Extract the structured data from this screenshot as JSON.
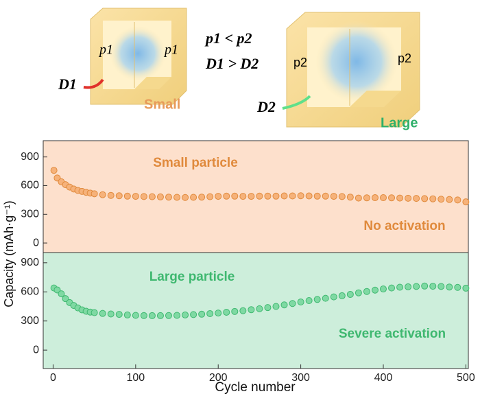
{
  "diagram": {
    "relation_p": "p1 < p2",
    "relation_d": "D1 > D2",
    "small": {
      "p_left": "p1",
      "p_right": "p1",
      "d": "D1",
      "label": "Small"
    },
    "large": {
      "p_left": "p2",
      "p_right": "p2",
      "d": "D2",
      "label": "Large"
    }
  },
  "chart_data": [
    {
      "type": "scatter",
      "ylabel": "Capacity (mAh·g⁻¹)",
      "annotations": [
        "Small particle",
        "No activation"
      ],
      "background": "#fde0cc",
      "color": "#f6b27a",
      "edge_color": "#e08a3c",
      "x": [
        1,
        5,
        10,
        15,
        20,
        25,
        30,
        35,
        40,
        45,
        50,
        60,
        70,
        80,
        90,
        100,
        110,
        120,
        130,
        140,
        150,
        160,
        170,
        180,
        190,
        200,
        210,
        220,
        230,
        240,
        250,
        260,
        270,
        280,
        290,
        300,
        310,
        320,
        330,
        340,
        350,
        360,
        370,
        380,
        390,
        400,
        410,
        420,
        430,
        440,
        450,
        460,
        470,
        480,
        490,
        500
      ],
      "values": [
        760,
        680,
        640,
        610,
        585,
        565,
        550,
        540,
        530,
        522,
        515,
        505,
        498,
        494,
        490,
        488,
        486,
        484,
        482,
        480,
        478,
        476,
        478,
        480,
        484,
        488,
        490,
        490,
        488,
        488,
        490,
        490,
        490,
        492,
        492,
        494,
        492,
        490,
        490,
        488,
        486,
        480,
        470,
        472,
        474,
        474,
        472,
        470,
        468,
        466,
        464,
        462,
        458,
        455,
        450,
        430
      ],
      "xlim": [
        -12,
        503
      ],
      "ylim": [
        -100,
        1070
      ],
      "yticks": [
        0,
        300,
        600,
        900
      ]
    },
    {
      "type": "scatter",
      "xlabel": "Cycle number",
      "annotations": [
        "Large particle",
        "Severe activation"
      ],
      "background": "#cdeedb",
      "color": "#7fd9a3",
      "edge_color": "#3fb870",
      "x": [
        1,
        5,
        10,
        15,
        20,
        25,
        30,
        35,
        40,
        45,
        50,
        60,
        70,
        80,
        90,
        100,
        110,
        120,
        130,
        140,
        150,
        160,
        170,
        180,
        190,
        200,
        210,
        220,
        230,
        240,
        250,
        260,
        270,
        280,
        290,
        300,
        310,
        320,
        330,
        340,
        350,
        360,
        370,
        380,
        390,
        400,
        410,
        420,
        430,
        440,
        450,
        460,
        470,
        480,
        490,
        500
      ],
      "values": [
        640,
        620,
        580,
        530,
        490,
        460,
        435,
        415,
        400,
        392,
        386,
        378,
        372,
        368,
        362,
        358,
        356,
        355,
        355,
        356,
        358,
        362,
        366,
        370,
        376,
        382,
        390,
        398,
        406,
        416,
        426,
        438,
        450,
        466,
        480,
        496,
        510,
        522,
        534,
        548,
        560,
        574,
        590,
        604,
        618,
        630,
        640,
        648,
        652,
        656,
        660,
        658,
        656,
        650,
        646,
        638
      ],
      "xlim": [
        -12,
        503
      ],
      "ylim": [
        -190,
        1005
      ],
      "yticks": [
        0,
        300,
        600,
        900
      ],
      "xticks": [
        0,
        100,
        200,
        300,
        400,
        500
      ]
    }
  ]
}
